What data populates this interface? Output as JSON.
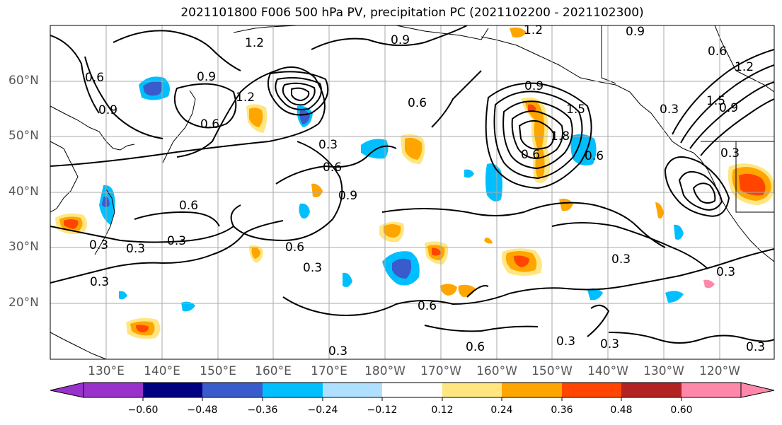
{
  "title": "2021101800 F006 500 hPa PV, precipitation PC (2021102200 - 2021102300)",
  "lat_labels": [
    "60°N",
    "50°N",
    "40°N",
    "30°N",
    "20°N"
  ],
  "lon_labels": [
    "130°E",
    "140°E",
    "150°E",
    "160°E",
    "170°E",
    "180°W",
    "170°W",
    "160°W",
    "150°W",
    "140°W",
    "130°W",
    "120°W"
  ],
  "colorbar": {
    "ticks": [
      "−0.60",
      "−0.48",
      "−0.36",
      "−0.24",
      "−0.12",
      "0.12",
      "0.24",
      "0.36",
      "0.48",
      "0.60"
    ],
    "colors": [
      "#9932CC",
      "#000080",
      "#3A5BCC",
      "#00BFFF",
      "#B0E0FF",
      "#FFFFFF",
      "#FFE680",
      "#FFA500",
      "#FF4500",
      "#B22222",
      "#FF88AA"
    ]
  },
  "contour_labels": [
    "1.2",
    "0.9",
    "0.6",
    "0.9",
    "0.6",
    "0.9",
    "1.2",
    "1.2",
    "0.3",
    "0.6",
    "0.9",
    "0.6",
    "0.6",
    "0.3",
    "0.6",
    "0.3",
    "0.3",
    "0.6",
    "0.3",
    "0.3",
    "0.9",
    "0.6",
    "0.9",
    "1.5",
    "1.8",
    "0.6",
    "0.3",
    "1.2",
    "1.5",
    "0.9",
    "0.6",
    "0.3",
    "0.3",
    "0.3",
    "0.3",
    "0.3",
    "0.3",
    "0.6",
    "0.3"
  ]
}
